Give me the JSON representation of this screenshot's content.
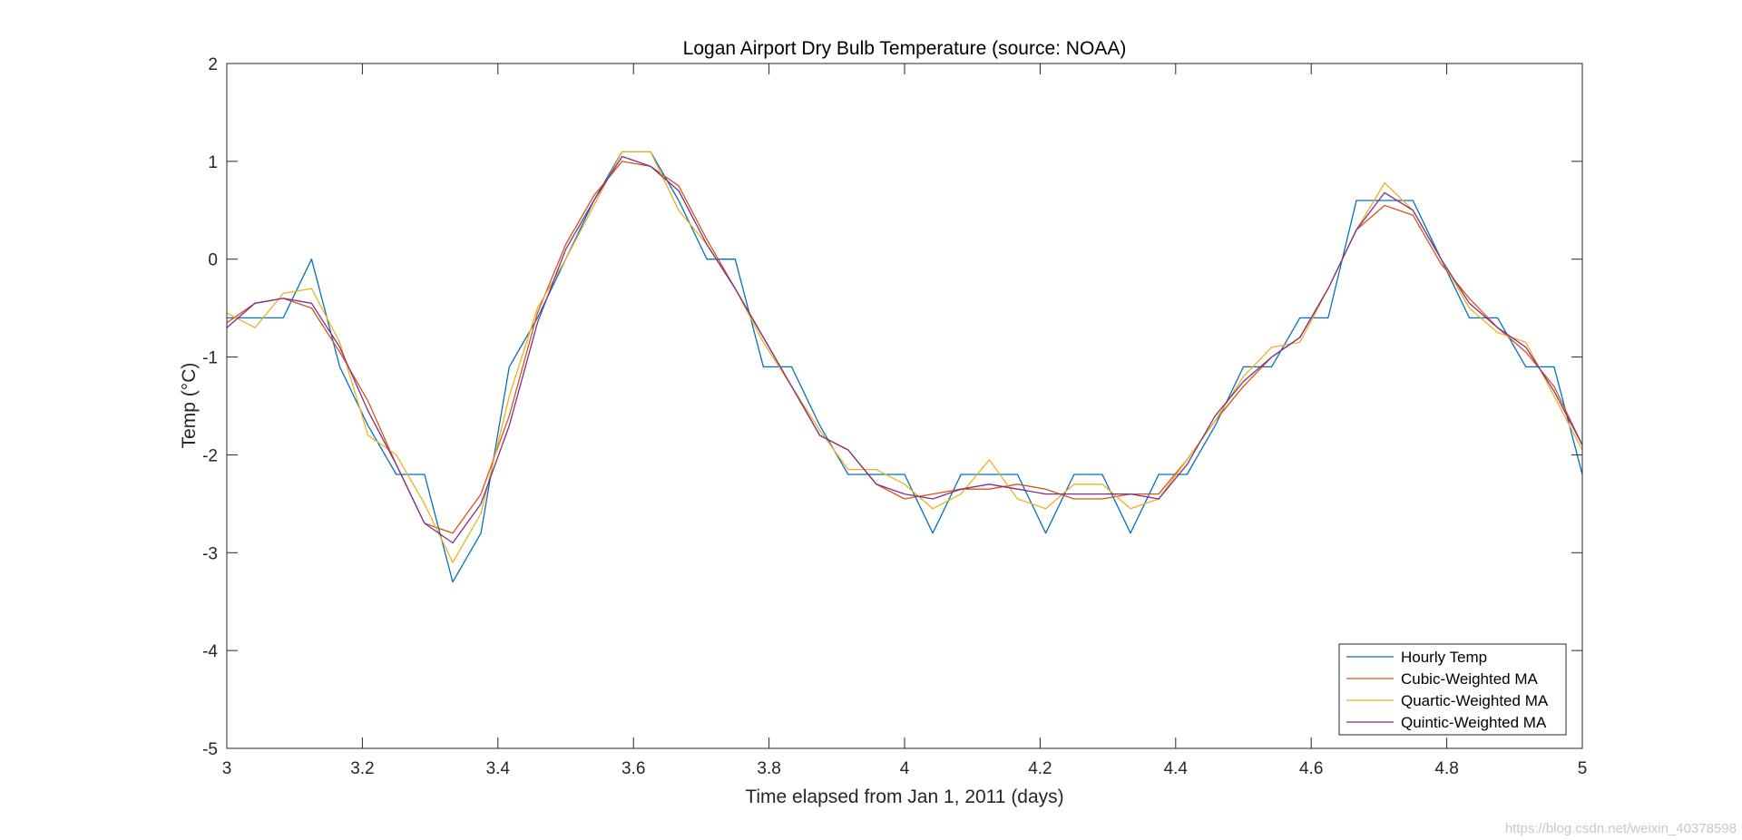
{
  "chart_data": {
    "type": "line",
    "title": "Logan Airport Dry Bulb Temperature (source: NOAA)",
    "xlabel": "Time elapsed from Jan 1, 2011 (days)",
    "ylabel": "Temp (°C)",
    "xlim": [
      3,
      5
    ],
    "ylim": [
      -5,
      2
    ],
    "xticks": [
      3,
      3.2,
      3.4,
      3.6,
      3.8,
      4,
      4.2,
      4.4,
      4.6,
      4.8,
      5
    ],
    "xtick_labels": [
      "3",
      "3.2",
      "3.4",
      "3.6",
      "3.8",
      "4",
      "4.2",
      "4.4",
      "4.6",
      "4.8",
      "5"
    ],
    "yticks": [
      -5,
      -4,
      -3,
      -2,
      -1,
      0,
      1,
      2
    ],
    "ytick_labels": [
      "-5",
      "-4",
      "-3",
      "-2",
      "-1",
      "0",
      "1",
      "2"
    ],
    "grid": false,
    "legend_position": "bottom-right",
    "x": [
      3.0,
      3.0417,
      3.0833,
      3.125,
      3.1667,
      3.2083,
      3.25,
      3.2917,
      3.3333,
      3.375,
      3.4167,
      3.4583,
      3.5,
      3.5417,
      3.5833,
      3.625,
      3.6667,
      3.7083,
      3.75,
      3.7917,
      3.8333,
      3.875,
      3.9167,
      3.9583,
      4.0,
      4.0417,
      4.0833,
      4.125,
      4.1667,
      4.2083,
      4.25,
      4.2917,
      4.3333,
      4.375,
      4.4167,
      4.4583,
      4.5,
      4.5417,
      4.5833,
      4.625,
      4.6667,
      4.7083,
      4.75,
      4.7917,
      4.8333,
      4.875,
      4.9167,
      4.9583,
      5.0
    ],
    "series": [
      {
        "name": "Hourly Temp",
        "color": "#0072BD",
        "values": [
          -0.6,
          -0.6,
          -0.6,
          0.0,
          -1.1,
          -1.7,
          -2.2,
          -2.2,
          -3.3,
          -2.8,
          -1.1,
          -0.6,
          0.0,
          0.6,
          1.1,
          1.1,
          0.6,
          0.0,
          0.0,
          -1.1,
          -1.1,
          -1.7,
          -2.2,
          -2.2,
          -2.2,
          -2.8,
          -2.2,
          -2.2,
          -2.2,
          -2.8,
          -2.2,
          -2.2,
          -2.8,
          -2.2,
          -2.2,
          -1.7,
          -1.1,
          -1.1,
          -0.6,
          -0.6,
          0.6,
          0.6,
          0.6,
          0.0,
          -0.6,
          -0.6,
          -1.1,
          -1.1,
          -2.2
        ]
      },
      {
        "name": "Cubic-Weighted MA",
        "color": "#D95319",
        "values": [
          -0.65,
          -0.45,
          -0.4,
          -0.5,
          -0.95,
          -1.45,
          -2.1,
          -2.7,
          -2.8,
          -2.4,
          -1.6,
          -0.55,
          0.15,
          0.65,
          1.0,
          0.95,
          0.75,
          0.2,
          -0.3,
          -0.8,
          -1.3,
          -1.8,
          -1.95,
          -2.3,
          -2.45,
          -2.4,
          -2.35,
          -2.35,
          -2.3,
          -2.35,
          -2.45,
          -2.45,
          -2.4,
          -2.4,
          -2.05,
          -1.65,
          -1.3,
          -1.0,
          -0.8,
          -0.3,
          0.3,
          0.55,
          0.45,
          -0.05,
          -0.4,
          -0.7,
          -0.95,
          -1.3,
          -1.9
        ]
      },
      {
        "name": "Quartic-Weighted MA",
        "color": "#EDB120",
        "values": [
          -0.55,
          -0.7,
          -0.35,
          -0.3,
          -0.85,
          -1.8,
          -2.0,
          -2.5,
          -3.1,
          -2.6,
          -1.4,
          -0.5,
          0.0,
          0.55,
          1.1,
          1.1,
          0.5,
          0.15,
          -0.3,
          -0.85,
          -1.3,
          -1.75,
          -2.15,
          -2.15,
          -2.3,
          -2.55,
          -2.4,
          -2.05,
          -2.45,
          -2.55,
          -2.3,
          -2.3,
          -2.55,
          -2.45,
          -2.05,
          -1.65,
          -1.2,
          -0.9,
          -0.85,
          -0.3,
          0.3,
          0.78,
          0.5,
          0.0,
          -0.5,
          -0.75,
          -0.85,
          -1.4,
          -1.95
        ]
      },
      {
        "name": "Quintic-Weighted MA",
        "color": "#7E2F8E",
        "values": [
          -0.7,
          -0.45,
          -0.4,
          -0.45,
          -0.9,
          -1.55,
          -2.1,
          -2.7,
          -2.9,
          -2.5,
          -1.7,
          -0.65,
          0.1,
          0.6,
          1.05,
          0.95,
          0.7,
          0.15,
          -0.3,
          -0.8,
          -1.3,
          -1.8,
          -1.95,
          -2.3,
          -2.4,
          -2.45,
          -2.35,
          -2.3,
          -2.35,
          -2.4,
          -2.4,
          -2.4,
          -2.4,
          -2.45,
          -2.1,
          -1.6,
          -1.25,
          -1.0,
          -0.8,
          -0.3,
          0.3,
          0.68,
          0.5,
          0.0,
          -0.45,
          -0.7,
          -0.9,
          -1.35,
          -1.9
        ]
      }
    ]
  },
  "watermark": "https://blog.csdn.net/weixin_40378598"
}
